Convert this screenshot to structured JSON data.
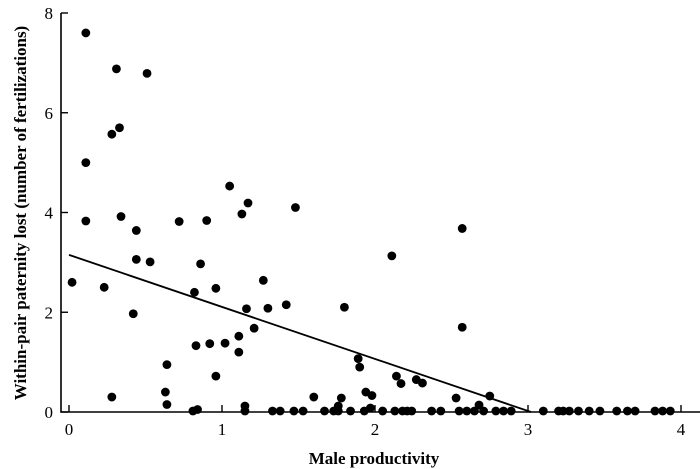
{
  "chart_data": {
    "type": "scatter",
    "title": "",
    "xlabel": "Male productivity",
    "ylabel": "Within-pair paternity lost (number of fertilizations)",
    "xlim": [
      -0.05,
      4.15
    ],
    "ylim": [
      0,
      8
    ],
    "xticks": [
      0,
      1,
      2,
      3,
      4
    ],
    "yticks": [
      0,
      2,
      4,
      6,
      8
    ],
    "grid": false,
    "legend": "none",
    "fit_line": {
      "x": [
        0,
        3.02
      ],
      "y": [
        3.15,
        0
      ]
    },
    "series": [
      {
        "points": [
          [
            0.02,
            2.6
          ],
          [
            0.11,
            7.6
          ],
          [
            0.11,
            5.0
          ],
          [
            0.11,
            3.83
          ],
          [
            0.23,
            2.5
          ],
          [
            0.28,
            5.57
          ],
          [
            0.31,
            6.88
          ],
          [
            0.33,
            5.7
          ],
          [
            0.34,
            3.92
          ],
          [
            0.28,
            0.3
          ],
          [
            0.42,
            1.97
          ],
          [
            0.44,
            3.64
          ],
          [
            0.44,
            3.06
          ],
          [
            0.51,
            6.79
          ],
          [
            0.53,
            3.01
          ],
          [
            0.63,
            0.4
          ],
          [
            0.64,
            0.95
          ],
          [
            0.64,
            0.15
          ],
          [
            0.72,
            3.82
          ],
          [
            0.82,
            2.4
          ],
          [
            0.81,
            0.0
          ],
          [
            0.84,
            0.05
          ],
          [
            0.83,
            1.33
          ],
          [
            0.86,
            2.97
          ],
          [
            0.9,
            3.84
          ],
          [
            0.92,
            1.37
          ],
          [
            0.96,
            2.48
          ],
          [
            0.96,
            0.72
          ],
          [
            1.02,
            1.38
          ],
          [
            1.05,
            4.53
          ],
          [
            1.11,
            1.52
          ],
          [
            1.11,
            1.2
          ],
          [
            1.13,
            3.97
          ],
          [
            1.15,
            0.12
          ],
          [
            1.15,
            0.0
          ],
          [
            1.17,
            4.19
          ],
          [
            1.16,
            2.07
          ],
          [
            1.21,
            1.68
          ],
          [
            1.27,
            2.64
          ],
          [
            1.3,
            2.08
          ],
          [
            1.33,
            0.0
          ],
          [
            1.38,
            0.0
          ],
          [
            1.42,
            2.15
          ],
          [
            1.47,
            0.0
          ],
          [
            1.48,
            4.1
          ],
          [
            1.53,
            0.0
          ],
          [
            1.6,
            0.3
          ],
          [
            1.67,
            0.0
          ],
          [
            1.73,
            0.0
          ],
          [
            1.76,
            0.12
          ],
          [
            1.76,
            0.0
          ],
          [
            1.78,
            0.28
          ],
          [
            1.8,
            2.1
          ],
          [
            1.84,
            0.0
          ],
          [
            1.89,
            1.07
          ],
          [
            1.9,
            0.9
          ],
          [
            1.93,
            0.0
          ],
          [
            1.94,
            0.4
          ],
          [
            1.97,
            0.08
          ],
          [
            1.98,
            0.33
          ],
          [
            2.05,
            0.0
          ],
          [
            2.11,
            3.13
          ],
          [
            2.13,
            0.0
          ],
          [
            2.14,
            0.72
          ],
          [
            2.17,
            0.57
          ],
          [
            2.18,
            0.0
          ],
          [
            2.21,
            0.0
          ],
          [
            2.24,
            0.0
          ],
          [
            2.27,
            0.65
          ],
          [
            2.31,
            0.58
          ],
          [
            2.37,
            0.0
          ],
          [
            2.43,
            0.0
          ],
          [
            2.53,
            0.28
          ],
          [
            2.55,
            0.0
          ],
          [
            2.57,
            3.68
          ],
          [
            2.57,
            1.7
          ],
          [
            2.6,
            0.0
          ],
          [
            2.65,
            0.0
          ],
          [
            2.68,
            0.14
          ],
          [
            2.71,
            0.0
          ],
          [
            2.75,
            0.32
          ],
          [
            2.79,
            0.0
          ],
          [
            2.84,
            0.0
          ],
          [
            2.89,
            0.0
          ],
          [
            3.1,
            0.0
          ],
          [
            3.2,
            0.0
          ],
          [
            3.23,
            0.0
          ],
          [
            3.27,
            0.0
          ],
          [
            3.33,
            0.0
          ],
          [
            3.4,
            0.0
          ],
          [
            3.47,
            0.0
          ],
          [
            3.58,
            0.0
          ],
          [
            3.65,
            0.0
          ],
          [
            3.7,
            0.0
          ],
          [
            3.83,
            0.0
          ],
          [
            3.88,
            0.0
          ],
          [
            3.93,
            0.0
          ]
        ]
      }
    ]
  }
}
